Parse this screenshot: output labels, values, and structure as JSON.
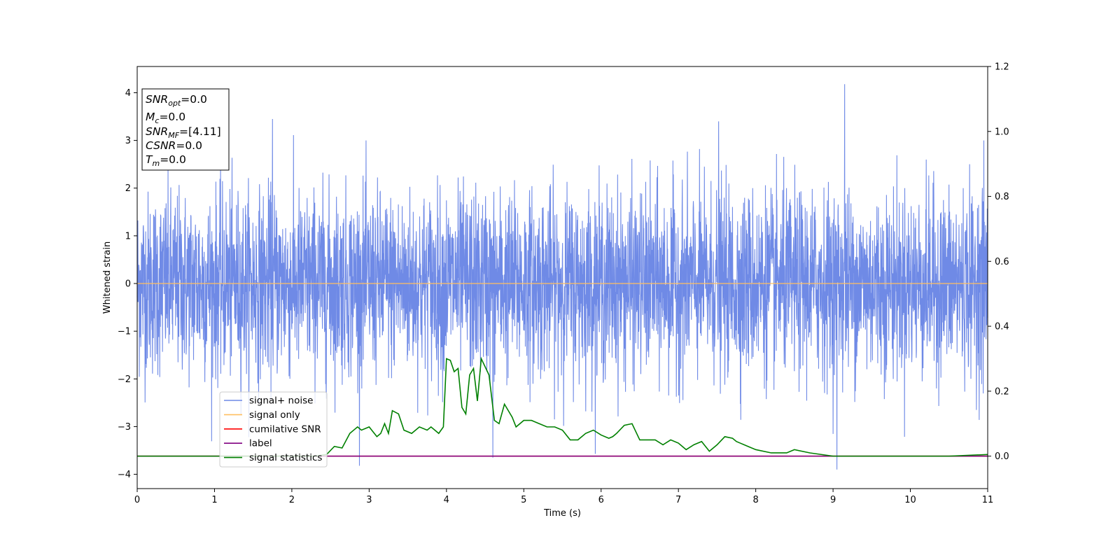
{
  "chart_data": {
    "type": "line",
    "xlabel": "Time (s)",
    "ylabel": "Whitened strain",
    "xlim": [
      0,
      11
    ],
    "ylim": [
      -4.3,
      4.55
    ],
    "y2lim": [
      -0.1,
      1.2
    ],
    "x_ticks": [
      0,
      1,
      2,
      3,
      4,
      5,
      6,
      7,
      8,
      9,
      10,
      11
    ],
    "y_ticks": [
      -4,
      -3,
      -2,
      -1,
      0,
      1,
      2,
      3,
      4
    ],
    "y2_ticks": [
      0.0,
      0.2,
      0.4,
      0.6,
      0.8,
      1.0,
      1.2
    ],
    "grid": false,
    "legend_position": "lower-left",
    "info_box": {
      "lines": [
        {
          "base": "SNR",
          "sub": "opt",
          "value": "=0.0"
        },
        {
          "base": "M",
          "sub": "c",
          "value": "=0.0"
        },
        {
          "base": "SNR",
          "sub": "MF",
          "value": "=[4.11]"
        },
        {
          "base": "CSNR",
          "sub": "",
          "value": "=0.0"
        },
        {
          "base": "T",
          "sub": "m",
          "value": "=0.0"
        }
      ]
    },
    "series": [
      {
        "name": "signal+ noise",
        "color": "#6f8ae6",
        "axis": "left",
        "description_stats": {
          "mean": 0.0,
          "std": 0.95,
          "min": -3.9,
          "max": 4.18
        },
        "notable_spikes": [
          [
            1.75,
            3.45
          ],
          [
            9.15,
            4.18
          ],
          [
            9.05,
            -3.9
          ],
          [
            4.6,
            -3.65
          ],
          [
            7.52,
            3.4
          ],
          [
            10.95,
            3.0
          ]
        ]
      },
      {
        "name": "signal only",
        "color": "#ffbf60",
        "axis": "left",
        "x": [
          0,
          11
        ],
        "y": [
          0,
          0
        ]
      },
      {
        "name": "cumilative SNR",
        "color": "#ff0000",
        "axis": "right",
        "x": [
          0,
          11
        ],
        "y": [
          0,
          0
        ]
      },
      {
        "name": "label",
        "color": "#800080",
        "axis": "right",
        "x": [
          0,
          11
        ],
        "y": [
          0,
          0
        ]
      },
      {
        "name": "signal statistics",
        "color": "#008000",
        "axis": "right",
        "x": [
          0,
          0.5,
          1,
          1.5,
          2,
          2.3,
          2.45,
          2.55,
          2.65,
          2.75,
          2.85,
          2.9,
          3.0,
          3.1,
          3.15,
          3.2,
          3.25,
          3.3,
          3.38,
          3.45,
          3.55,
          3.65,
          3.75,
          3.8,
          3.9,
          3.96,
          4.0,
          4.05,
          4.1,
          4.15,
          4.2,
          4.25,
          4.3,
          4.35,
          4.4,
          4.45,
          4.55,
          4.62,
          4.68,
          4.75,
          4.85,
          4.9,
          5.0,
          5.1,
          5.2,
          5.3,
          5.4,
          5.5,
          5.6,
          5.7,
          5.8,
          5.9,
          6.0,
          6.1,
          6.15,
          6.2,
          6.3,
          6.4,
          6.5,
          6.6,
          6.7,
          6.8,
          6.9,
          7.0,
          7.1,
          7.2,
          7.3,
          7.4,
          7.5,
          7.6,
          7.7,
          7.75,
          7.8,
          7.9,
          8.0,
          8.2,
          8.4,
          8.5,
          8.7,
          9.0,
          9.5,
          10.0,
          10.5,
          11.0
        ],
        "y": [
          0.0,
          0.0,
          0.0,
          0.0,
          0.0,
          0.0,
          0.005,
          0.03,
          0.025,
          0.07,
          0.09,
          0.08,
          0.09,
          0.06,
          0.07,
          0.1,
          0.07,
          0.14,
          0.13,
          0.08,
          0.07,
          0.09,
          0.08,
          0.09,
          0.07,
          0.09,
          0.3,
          0.295,
          0.26,
          0.27,
          0.15,
          0.13,
          0.25,
          0.27,
          0.17,
          0.3,
          0.25,
          0.11,
          0.1,
          0.16,
          0.12,
          0.09,
          0.11,
          0.11,
          0.1,
          0.09,
          0.09,
          0.08,
          0.05,
          0.05,
          0.07,
          0.08,
          0.065,
          0.055,
          0.06,
          0.07,
          0.095,
          0.1,
          0.05,
          0.05,
          0.05,
          0.035,
          0.05,
          0.04,
          0.02,
          0.035,
          0.045,
          0.015,
          0.035,
          0.06,
          0.055,
          0.045,
          0.04,
          0.03,
          0.02,
          0.01,
          0.01,
          0.02,
          0.01,
          0.0,
          0.0,
          0.0,
          0.0,
          0.005
        ]
      }
    ]
  }
}
